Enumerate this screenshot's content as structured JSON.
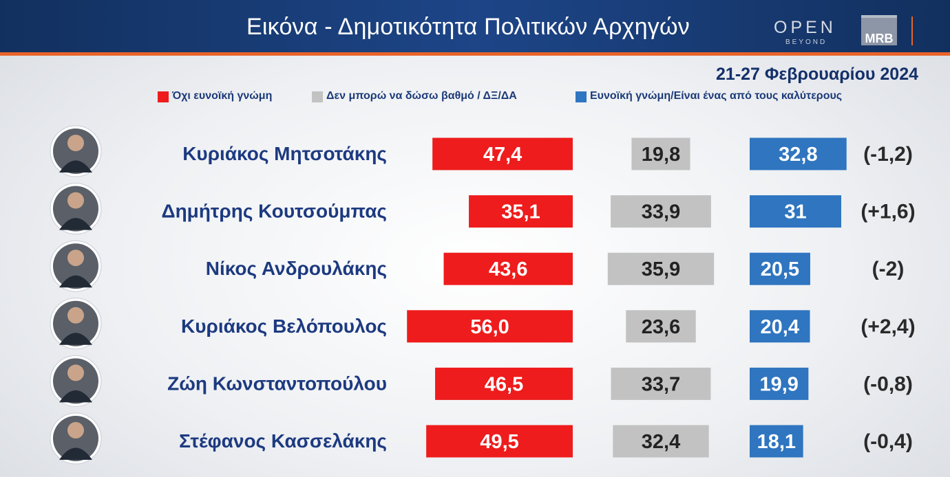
{
  "header": {
    "title": "Εικόνα - Δημοτικότητα Πολιτικών Αρχηγών",
    "logo_open": "OPEN",
    "logo_beyond": "BEYOND",
    "logo_mrb": "MRB"
  },
  "date": "21-27 Φεβρουαρίου 2024",
  "colors": {
    "negative": "#ee1c1c",
    "neutral": "#c2c2c2",
    "positive": "#2f75c0",
    "name": "#1d3a80"
  },
  "chart_data": {
    "type": "bar",
    "categories": [
      "Κυριάκος Μητσοτάκης",
      "Δημήτρης Κουτσούμπας",
      "Νίκος Ανδρουλάκης",
      "Κυριάκος Βελόπουλος",
      "Ζώη Κωνσταντοπούλου",
      "Στέφανος Κασσελάκης"
    ],
    "series": [
      {
        "name": "Όχι ευνοϊκή γνώμη",
        "values": [
          47.4,
          35.1,
          43.6,
          56.0,
          46.5,
          49.5
        ],
        "labels": [
          "47,4",
          "35,1",
          "43,6",
          "56,0",
          "46,5",
          "49,5"
        ]
      },
      {
        "name": "Δεν μπορώ να δώσω βαθμό / ΔΞ/ΔΑ",
        "values": [
          19.8,
          33.9,
          35.9,
          23.6,
          33.7,
          32.4
        ],
        "labels": [
          "19,8",
          "33,9",
          "35,9",
          "23,6",
          "33,7",
          "32,4"
        ]
      },
      {
        "name": "Ευνοϊκή γνώμη/Είναι ένας από τους καλύτερους",
        "values": [
          32.8,
          31,
          20.5,
          20.4,
          19.9,
          18.1
        ],
        "labels": [
          "32,8",
          "31",
          "20,5",
          "20,4",
          "19,9",
          "18,1"
        ]
      }
    ],
    "changes": [
      "(-1,2)",
      "(+1,6)",
      "(-2)",
      "(+2,4)",
      "(-0,8)",
      "(-0,4)"
    ]
  }
}
